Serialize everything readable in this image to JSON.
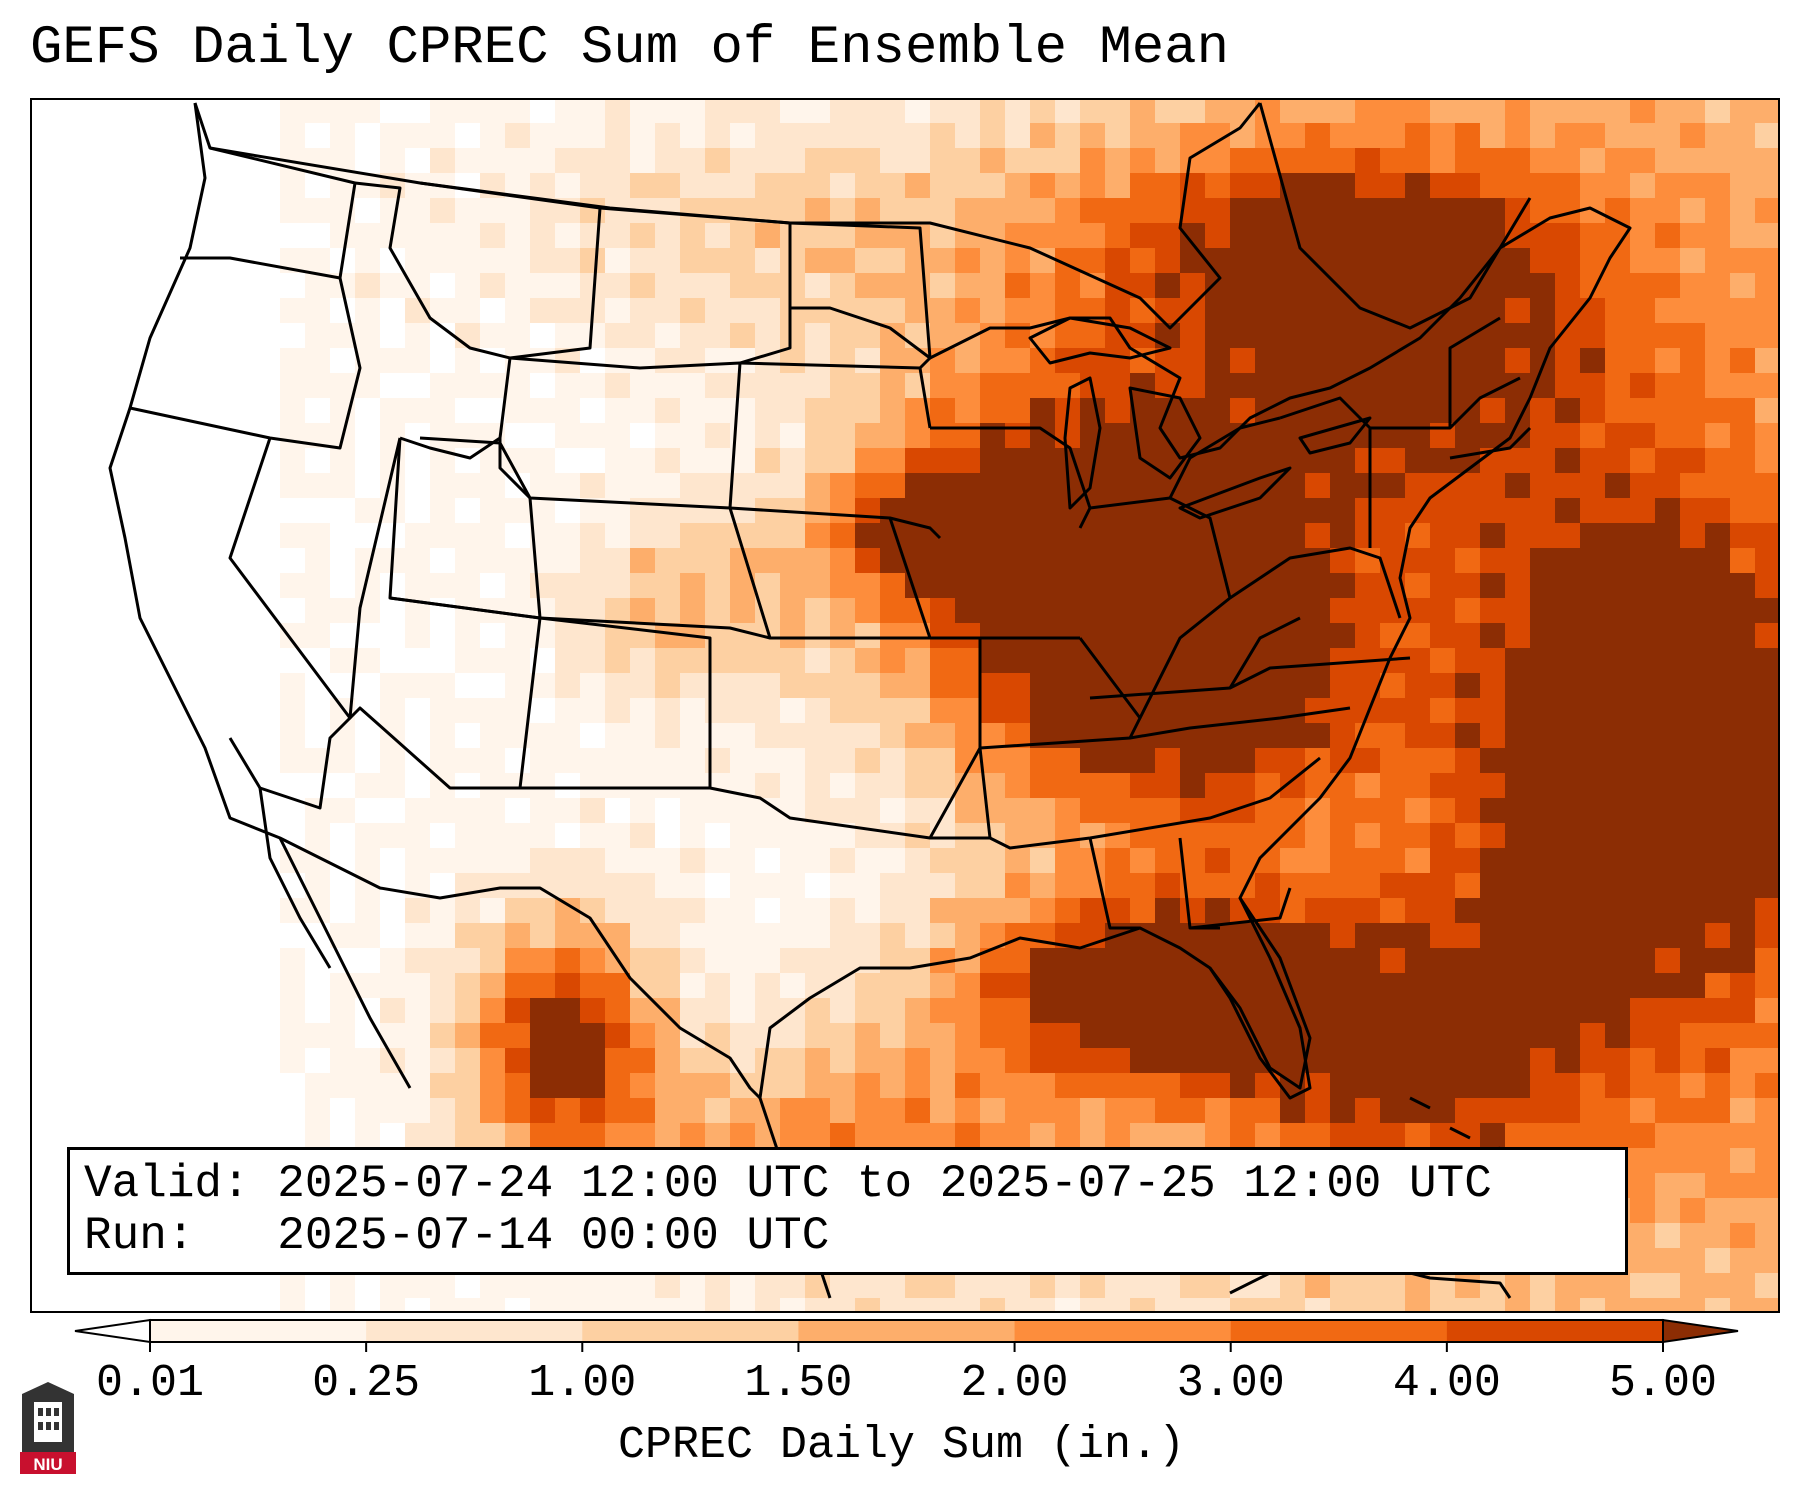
{
  "title": "GEFS Daily CPREC Sum of Ensemble Mean",
  "info": {
    "valid": "Valid: 2025-07-24 12:00 UTC to 2025-07-25 12:00 UTC",
    "run": "Run:   2025-07-14 00:00 UTC"
  },
  "colorbar": {
    "label": "CPREC Daily Sum (in.)",
    "ticks": [
      "0.01",
      "0.25",
      "1.00",
      "1.50",
      "2.00",
      "3.00",
      "4.00",
      "5.00"
    ],
    "colors": [
      "#fff5eb",
      "#fee6ce",
      "#fdd0a2",
      "#fdae6b",
      "#fd8d3c",
      "#f16913",
      "#d94801",
      "#8c2d04"
    ],
    "under_color": "#ffffff",
    "over_color": "#8c2d04"
  },
  "map": {
    "field": "CPREC",
    "palette": {
      "white": "#ffffff",
      "c1": "#fff5eb",
      "c2": "#fee6ce",
      "c3": "#fdd0a2",
      "c4": "#fdae6b",
      "c5": "#fd8d3c",
      "c6": "#f16913",
      "c7": "#d94801",
      "c8": "#8c2d04"
    }
  },
  "logo": {
    "text": "NIU",
    "icon": "niu-tower-logo-icon"
  }
}
